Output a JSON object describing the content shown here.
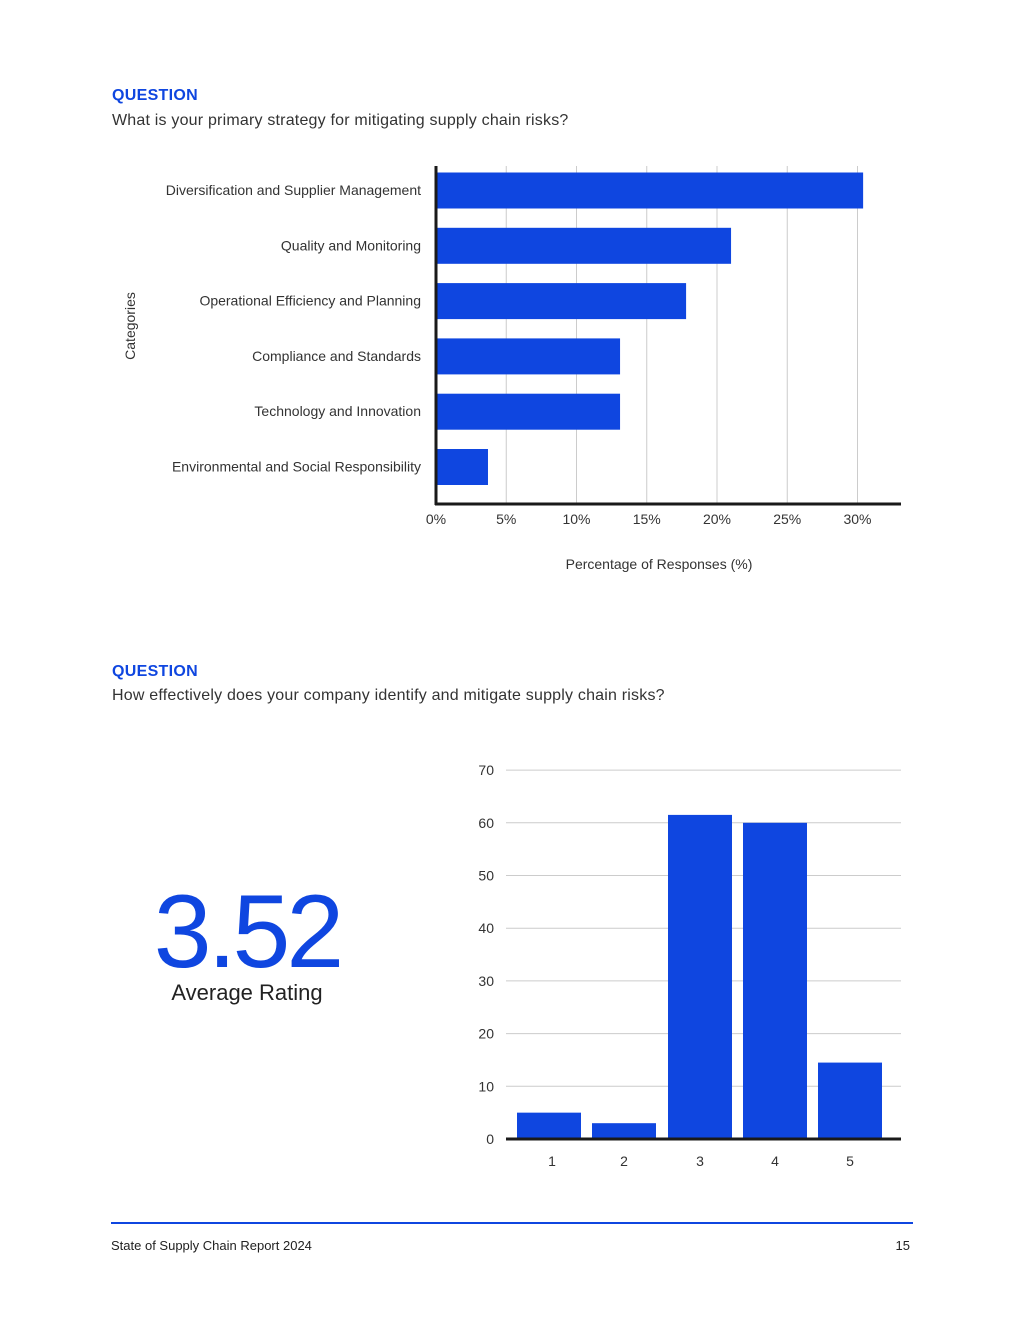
{
  "colors": {
    "accent": "#0f46e0",
    "bar": "#0f46e0",
    "grid": "#cccccc",
    "axis": "#1a1a1a"
  },
  "sections": [
    {
      "label": "QUESTION",
      "question": "What is your primary strategy for mitigating supply chain risks?"
    },
    {
      "label": "QUESTION",
      "question": "How effectively does your company identify and mitigate supply chain risks?"
    }
  ],
  "kpi": {
    "value": "3.52",
    "label": "Average Rating"
  },
  "footer": {
    "title": "State of Supply Chain Report 2024",
    "page": "15"
  },
  "chart_data": [
    {
      "type": "bar",
      "orientation": "horizontal",
      "categories": [
        "Diversification and Supplier Management",
        "Quality and Monitoring",
        "Operational Efficiency and Planning",
        "Compliance and Standards",
        "Technology and Innovation",
        "Environmental and Social Responsibility"
      ],
      "values": [
        30.4,
        21.0,
        17.8,
        13.1,
        13.1,
        3.7
      ],
      "xlabel": "Percentage of Responses (%)",
      "ylabel": "Categories",
      "xlim": [
        0,
        33
      ],
      "xticks": [
        0,
        5,
        10,
        15,
        20,
        25,
        30
      ],
      "xtick_labels": [
        "0%",
        "5%",
        "10%",
        "15%",
        "20%",
        "25%",
        "30%"
      ],
      "grid": true
    },
    {
      "type": "bar",
      "orientation": "vertical",
      "categories": [
        "1",
        "2",
        "3",
        "4",
        "5"
      ],
      "values": [
        5,
        3,
        61.5,
        60,
        14.5
      ],
      "ylim": [
        0,
        70
      ],
      "yticks": [
        0,
        10,
        20,
        30,
        40,
        50,
        60,
        70
      ],
      "xlabel": "",
      "ylabel": "",
      "grid": true
    }
  ]
}
